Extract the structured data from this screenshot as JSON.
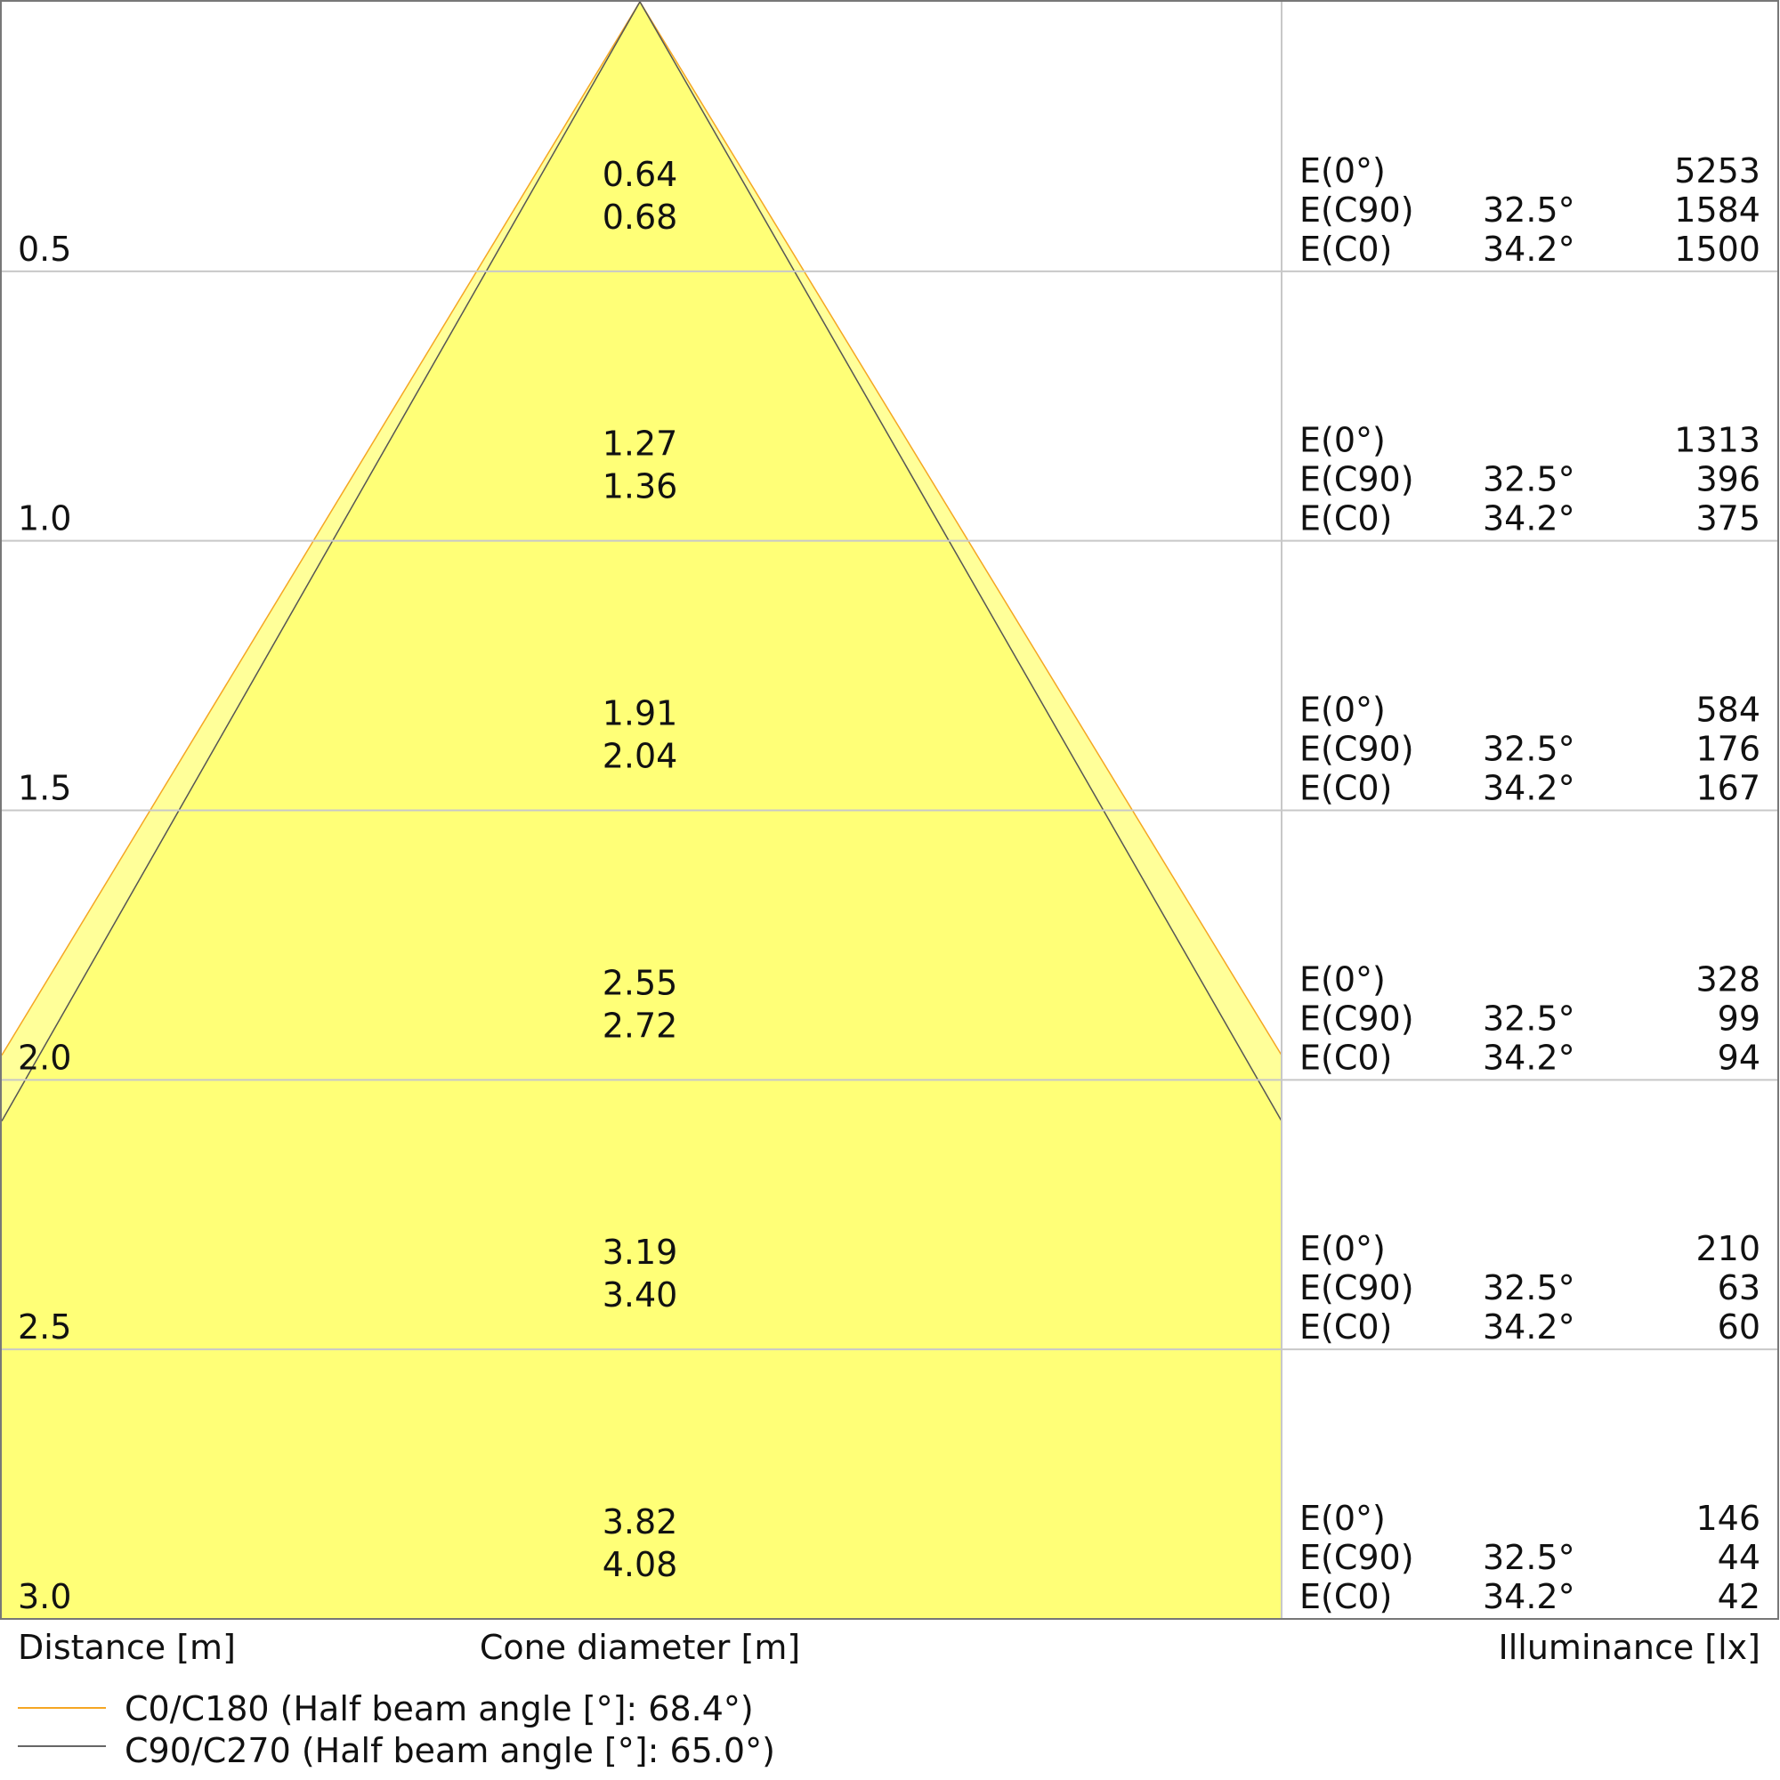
{
  "chart_data": {
    "type": "cone-diagram",
    "xlabel_left": "Distance [m]",
    "xlabel_center": "Cone diameter [m]",
    "xlabel_right": "Illuminance [lx]",
    "colors": {
      "c0": "#f5a623",
      "c90": "#555555",
      "fill_outer": "#ffff99",
      "fill_inner": "#ffff77",
      "grid": "#c8c8c8"
    },
    "legend": [
      {
        "label": "C0/C180 (Half beam angle [°]: 68.4°)",
        "color": "#f5a623"
      },
      {
        "label": "C90/C270 (Half beam angle [°]: 65.0°)",
        "color": "#666666"
      }
    ],
    "rows": [
      {
        "distance": "0.5",
        "d_c90": "0.64",
        "d_c0": "0.68",
        "e0": "5253",
        "ec90": "1584",
        "ec0": "1500"
      },
      {
        "distance": "1.0",
        "d_c90": "1.27",
        "d_c0": "1.36",
        "e0": "1313",
        "ec90": "396",
        "ec0": "375"
      },
      {
        "distance": "1.5",
        "d_c90": "1.91",
        "d_c0": "2.04",
        "e0": "584",
        "ec90": "176",
        "ec0": "167"
      },
      {
        "distance": "2.0",
        "d_c90": "2.55",
        "d_c0": "2.72",
        "e0": "328",
        "ec90": "99",
        "ec0": "94"
      },
      {
        "distance": "2.5",
        "d_c90": "3.19",
        "d_c0": "3.40",
        "e0": "210",
        "ec90": "63",
        "ec0": "60"
      },
      {
        "distance": "3.0",
        "d_c90": "3.82",
        "d_c0": "4.08",
        "e0": "146",
        "ec90": "44",
        "ec0": "42"
      }
    ],
    "labels": {
      "e0": "E(0°)",
      "ec90": "E(C90)",
      "ec0": "E(C0)",
      "angle_c90": "32.5°",
      "angle_c0": "34.2°"
    }
  }
}
